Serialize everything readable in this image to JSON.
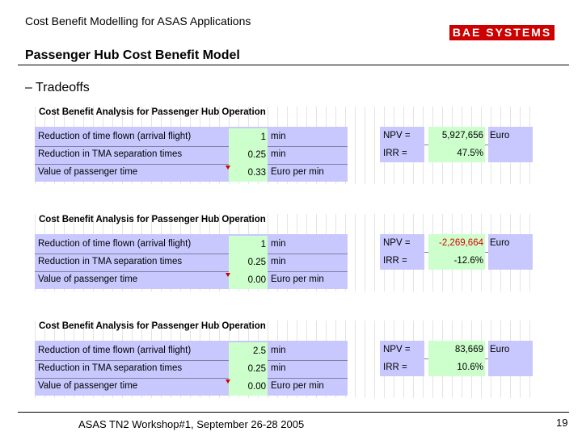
{
  "header": {
    "title": "Cost Benefit Modelling for ASAS Applications",
    "logo_text": "BAE SYSTEMS"
  },
  "slide": {
    "title": "Passenger Hub Cost Benefit Model",
    "bullet": "– Tradeoffs"
  },
  "colors": {
    "brand_red": "#cc0000",
    "input_fill": "#c8c8ff",
    "result_fill": "#ccffcc",
    "negative_text": "#dd0000"
  },
  "blocks": [
    {
      "title": "Cost Benefit Analysis for Passenger Hub Operation",
      "rows": [
        {
          "label": "Reduction of time flown (arrival flight)",
          "value": "1",
          "unit": "min"
        },
        {
          "label": "Reduction in TMA separation times",
          "value": "0.25",
          "unit": "min"
        },
        {
          "label": "Value of passenger time",
          "value": "0.33",
          "unit": "Euro per min"
        }
      ],
      "results": [
        {
          "label": "NPV =",
          "value": "5,927,656",
          "unit": "Euro"
        },
        {
          "label": "IRR =",
          "value": "47.5%",
          "unit": ""
        }
      ]
    },
    {
      "title": "Cost Benefit Analysis for Passenger Hub Operation",
      "rows": [
        {
          "label": "Reduction of time flown (arrival flight)",
          "value": "1",
          "unit": "min"
        },
        {
          "label": "Reduction in TMA separation times",
          "value": "0.25",
          "unit": "min"
        },
        {
          "label": "Value of passenger time",
          "value": "0.00",
          "unit": "Euro per min"
        }
      ],
      "results": [
        {
          "label": "NPV =",
          "value": "-2,269,664",
          "unit": "Euro"
        },
        {
          "label": "IRR =",
          "value": "-12.6%",
          "unit": ""
        }
      ]
    },
    {
      "title": "Cost Benefit Analysis for Passenger Hub Operation",
      "rows": [
        {
          "label": "Reduction of time flown (arrival flight)",
          "value": "2.5",
          "unit": "min"
        },
        {
          "label": "Reduction in TMA separation times",
          "value": "0.25",
          "unit": "min"
        },
        {
          "label": "Value of passenger time",
          "value": "0.00",
          "unit": "Euro per min"
        }
      ],
      "results": [
        {
          "label": "NPV =",
          "value": "83,669",
          "unit": "Euro"
        },
        {
          "label": "IRR =",
          "value": "10.6%",
          "unit": ""
        }
      ]
    }
  ],
  "footer": {
    "text": "ASAS TN2 Workshop#1, September 26-28 2005",
    "page_number": "19"
  }
}
